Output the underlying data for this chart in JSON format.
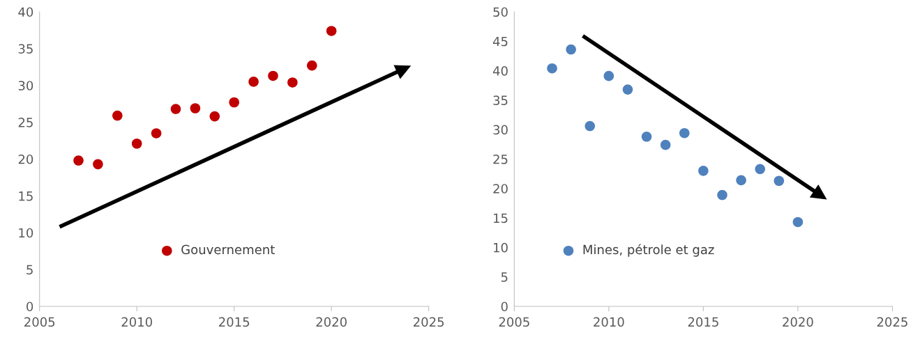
{
  "chart_data": [
    {
      "type": "scatter",
      "x": [
        2007,
        2008,
        2009,
        2010,
        2011,
        2012,
        2013,
        2014,
        2015,
        2016,
        2017,
        2018,
        2019,
        2020
      ],
      "series": [
        {
          "name": "Gouvernement",
          "color": "#c00000",
          "values": [
            19.8,
            19.3,
            25.9,
            22.1,
            23.5,
            26.8,
            26.9,
            25.8,
            27.7,
            30.5,
            31.3,
            30.4,
            32.7,
            37.4
          ]
        }
      ],
      "xlim": [
        2005,
        2025
      ],
      "xticks": [
        2005,
        2010,
        2015,
        2020,
        2025
      ],
      "ylim": [
        0,
        40
      ],
      "yticks": [
        0,
        5,
        10,
        15,
        20,
        25,
        30,
        35,
        40
      ],
      "marker": "circle",
      "grid": false,
      "legend": "bottom"
    },
    {
      "type": "scatter",
      "x": [
        2007,
        2008,
        2009,
        2010,
        2011,
        2012,
        2013,
        2014,
        2015,
        2016,
        2017,
        2018,
        2019,
        2020
      ],
      "series": [
        {
          "name": "Mines, pétrole et gaz",
          "color": "#4f81bd",
          "values": [
            40.4,
            43.6,
            30.6,
            39.1,
            36.8,
            28.8,
            27.4,
            29.4,
            23.0,
            18.9,
            21.4,
            23.3,
            21.3,
            14.3
          ]
        }
      ],
      "xlim": [
        2005,
        2025
      ],
      "xticks": [
        2005,
        2010,
        2015,
        2020,
        2025
      ],
      "ylim": [
        0,
        50
      ],
      "yticks": [
        0,
        5,
        10,
        15,
        20,
        25,
        30,
        35,
        40,
        45,
        50
      ],
      "marker": "circle",
      "grid": false,
      "legend": "bottom left"
    }
  ]
}
